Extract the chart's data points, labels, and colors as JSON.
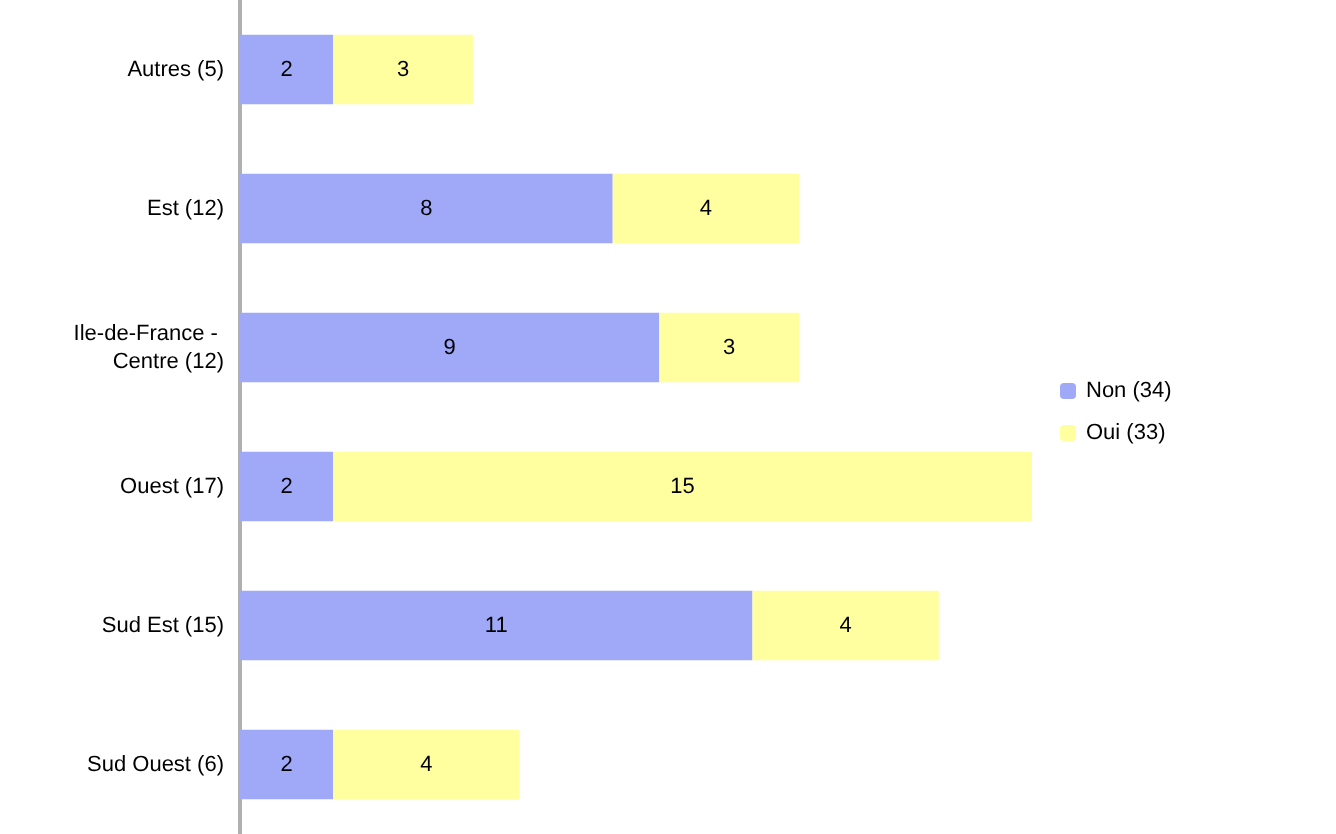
{
  "chart_data": {
    "type": "bar",
    "orientation": "horizontal",
    "stacked": true,
    "data_labels": true,
    "legend": "right",
    "grid": false,
    "tick_labels": "y",
    "categories": [
      "Autres (5)",
      "Est (12)",
      "Ile-de-France - Centre (12)",
      "Ouest (17)",
      "Sud Est (15)",
      "Sud Ouest (6)"
    ],
    "series": [
      {
        "name": "Non (34)",
        "color": "#a0a8f8",
        "values": [
          2,
          8,
          9,
          2,
          11,
          2
        ]
      },
      {
        "name": "Oui (33)",
        "color": "#ffffa0",
        "values": [
          3,
          4,
          3,
          15,
          4,
          4
        ]
      }
    ]
  }
}
